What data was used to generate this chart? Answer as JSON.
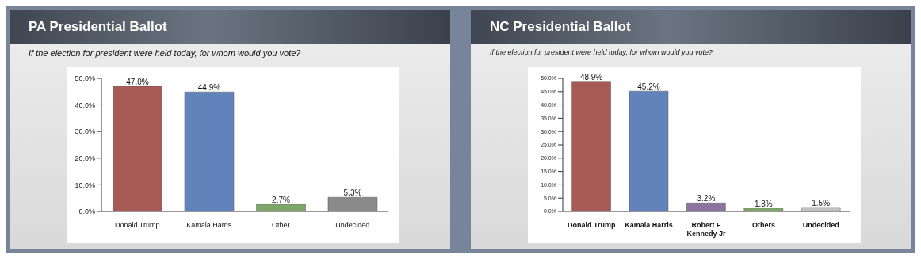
{
  "chart_data": [
    {
      "type": "bar",
      "title": "PA Presidential Ballot",
      "subtitle": "If the election for president were held today, for whom would you vote?",
      "categories": [
        "Donald Trump",
        "Kamala Harris",
        "Other",
        "Undecided"
      ],
      "values": [
        47.0,
        44.9,
        2.7,
        5.3
      ],
      "colors": [
        "#a85a57",
        "#6282bb",
        "#7fa66a",
        "#8a8a8a"
      ],
      "value_labels": [
        "47.0%",
        "44.9%",
        "2.7%",
        "5.3%"
      ],
      "ylim": [
        0,
        50
      ],
      "yticks": [
        {
          "value": 0,
          "label": "0.0%"
        },
        {
          "value": 10,
          "label": "10.0%"
        },
        {
          "value": 20,
          "label": "20.0%"
        },
        {
          "value": 30,
          "label": "30.0%"
        },
        {
          "value": 40,
          "label": "40.0%"
        },
        {
          "value": 50,
          "label": "50.0%"
        }
      ],
      "grid": false,
      "legend": false
    },
    {
      "type": "bar",
      "title": "NC Presidential Ballot",
      "subtitle": "If the election for president were held today, for whom would you vote?",
      "categories": [
        "Donald Trump",
        "Kamala Harris",
        "Robert F Kennedy Jr",
        "Others",
        "Undecided"
      ],
      "values": [
        48.9,
        45.2,
        3.2,
        1.3,
        1.5
      ],
      "colors": [
        "#a85a57",
        "#6282bb",
        "#8a73a0",
        "#7fa66a",
        "#c0c0c0"
      ],
      "value_labels": [
        "48.9%",
        "45.2%",
        "3.2%",
        "1.3%",
        "1.5%"
      ],
      "ylim": [
        0,
        50
      ],
      "yticks": [
        {
          "value": 0,
          "label": "0.0%"
        },
        {
          "value": 5,
          "label": "5.0%"
        },
        {
          "value": 10,
          "label": "10.0%"
        },
        {
          "value": 15,
          "label": "15.0%"
        },
        {
          "value": 20,
          "label": "20.0%"
        },
        {
          "value": 25,
          "label": "25.0%"
        },
        {
          "value": 30,
          "label": "30.0%"
        },
        {
          "value": 35,
          "label": "35.0%"
        },
        {
          "value": 40,
          "label": "40.0%"
        },
        {
          "value": 45,
          "label": "45.0%"
        },
        {
          "value": 50,
          "label": "50.0%"
        }
      ],
      "grid": false,
      "legend": false
    }
  ]
}
